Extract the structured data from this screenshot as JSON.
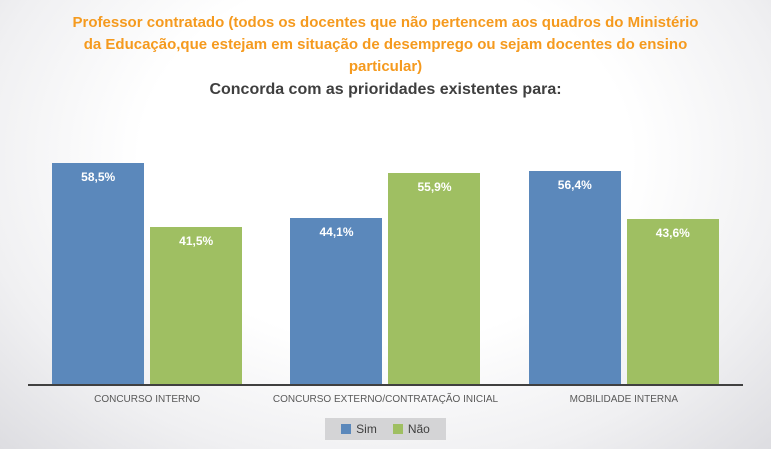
{
  "chart_data": {
    "type": "bar",
    "title": "Professor contratado (todos os docentes que não pertencem aos quadros do Ministério da Educação,que estejam em situação de desemprego ou sejam docentes do ensino particular)",
    "subtitle": "Concorda com as prioridades existentes para:",
    "categories": [
      "CONCURSO INTERNO",
      "CONCURSO EXTERNO/CONTRATAÇÃO INICIAL",
      "MOBILIDADE INTERNA"
    ],
    "series": [
      {
        "name": "Sim",
        "color": "#5b88bb",
        "values": [
          58.5,
          44.1,
          56.4
        ],
        "labels": [
          "58,5%",
          "44,1%",
          "56,4%"
        ]
      },
      {
        "name": "Não",
        "color": "#9fbf62",
        "values": [
          41.5,
          55.9,
          43.6
        ],
        "labels": [
          "41,5%",
          "55,9%",
          "43,6%"
        ]
      }
    ],
    "ylim": [
      0,
      62
    ],
    "grid": false,
    "legend_position": "bottom",
    "title_color": "#f59a1e",
    "subtitle_color": "#3f3f3f"
  }
}
